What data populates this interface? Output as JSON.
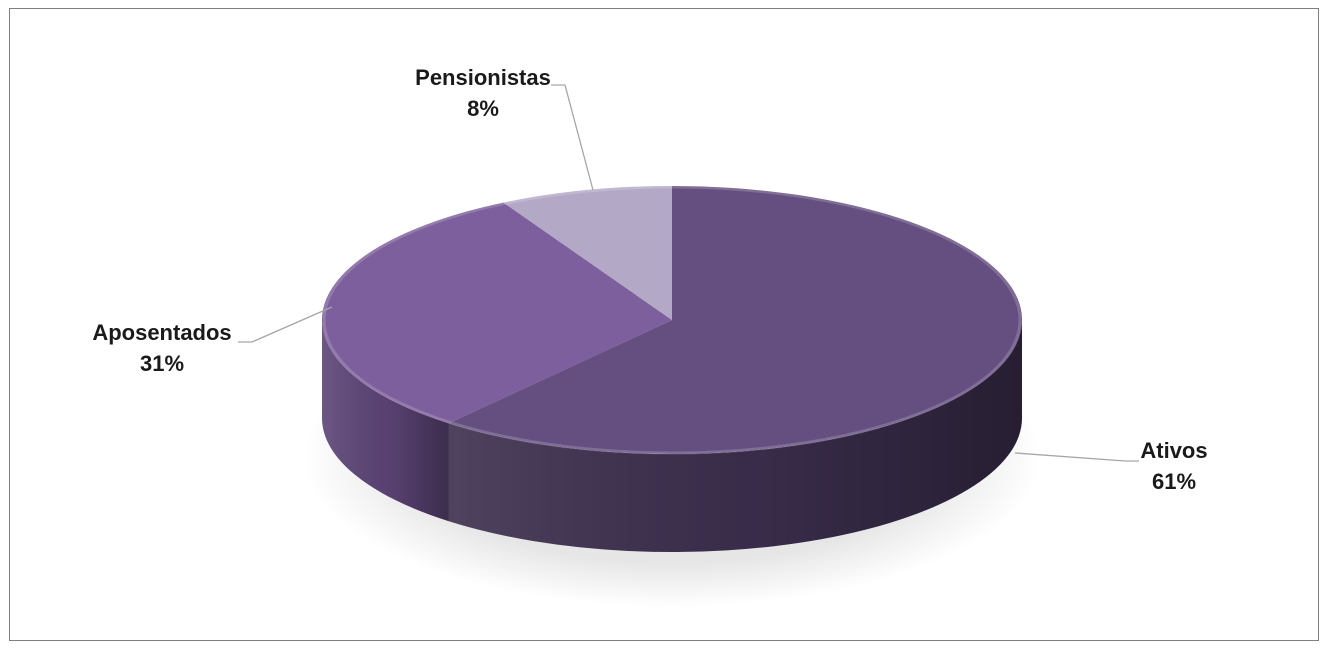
{
  "chart_data": {
    "type": "pie",
    "title": "",
    "slices": [
      {
        "label": "Ativos",
        "value": 61,
        "value_text": "61%",
        "color": "#654f80",
        "side_color": "#3b2e4d"
      },
      {
        "label": "Aposentados",
        "value": 31,
        "value_text": "31%",
        "color": "#7c5f9c",
        "side_color": "#5c4476"
      },
      {
        "label": "Pensionistas",
        "value": 8,
        "value_text": "8%",
        "color": "#b4a8c7",
        "side_color": "#8e82a3"
      }
    ],
    "legend": "none",
    "three_d": true
  }
}
